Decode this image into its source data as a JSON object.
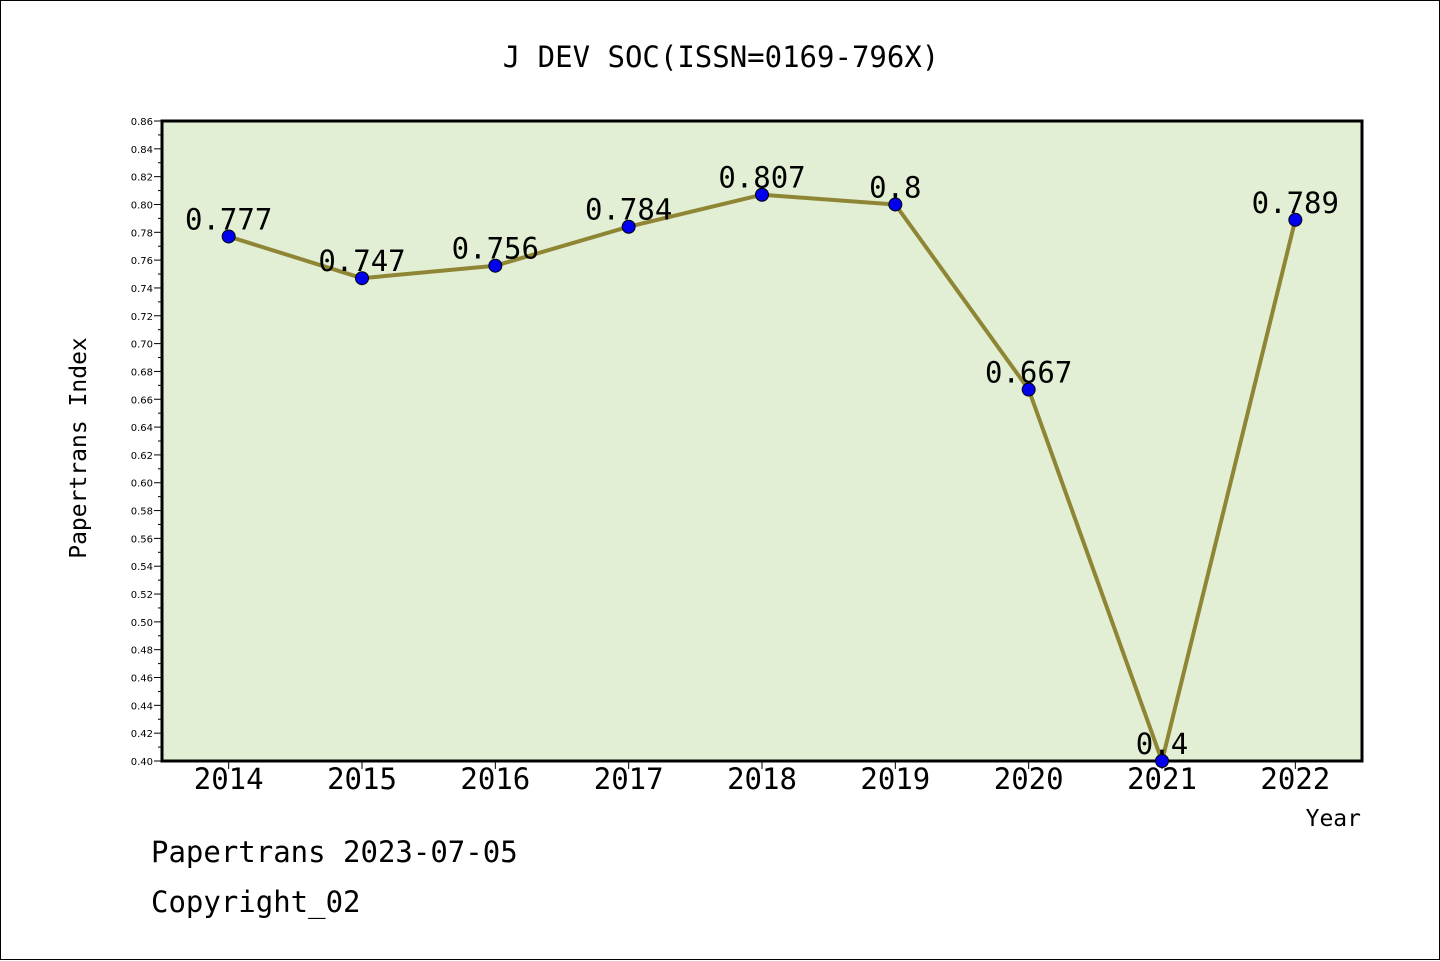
{
  "chart_data": {
    "type": "line",
    "title": "J DEV SOC(ISSN=0169-796X)",
    "xlabel": "Year",
    "ylabel": "Papertrans Index",
    "categories": [
      "2014",
      "2015",
      "2016",
      "2017",
      "2018",
      "2019",
      "2020",
      "2021",
      "2022"
    ],
    "values": [
      0.777,
      0.747,
      0.756,
      0.784,
      0.807,
      0.8,
      0.667,
      0.4,
      0.789
    ],
    "data_labels": [
      "0.777",
      "0.747",
      "0.756",
      "0.784",
      "0.807",
      "0.8",
      "0.667",
      "0.4",
      "0.789"
    ],
    "ylim": [
      0.4,
      0.86
    ],
    "ytick_step": 0.02,
    "grid": false,
    "legend": "none",
    "colors": {
      "plot_background": "#e2efd4",
      "line": "#8f8635",
      "marker": "#0000ee",
      "axis": "#000000"
    }
  },
  "footer": {
    "line1": "Papertrans 2023-07-05",
    "line2": "Copyright_02"
  }
}
